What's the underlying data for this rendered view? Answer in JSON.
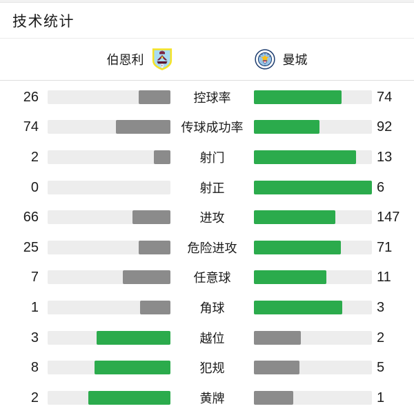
{
  "page": {
    "title": "技术统计"
  },
  "teams": {
    "home": {
      "name": "伯恩利"
    },
    "away": {
      "name": "曼城"
    }
  },
  "colors": {
    "leader_bar": "#2bab4c",
    "trailer_bar": "#8b8b8b",
    "track": "#ededed"
  },
  "chart_data": {
    "type": "bar",
    "orientation": "horizontal-paired",
    "title": "技术统计",
    "categories": [
      "控球率",
      "传球成功率",
      "射门",
      "射正",
      "进攻",
      "危险进攻",
      "任意球",
      "角球",
      "越位",
      "犯规",
      "黄牌"
    ],
    "series": [
      {
        "name": "伯恩利",
        "values": [
          26,
          74,
          2,
          0,
          66,
          25,
          7,
          1,
          3,
          8,
          2
        ]
      },
      {
        "name": "曼城",
        "values": [
          74,
          92,
          13,
          6,
          147,
          71,
          11,
          3,
          2,
          5,
          1
        ]
      }
    ],
    "value_scale": "each bar width = value / (home+away) of its row",
    "bar_colors": {
      "higher_value": "#2bab4c",
      "lower_value": "#8b8b8b"
    },
    "legend_position": "top",
    "grid": false
  }
}
